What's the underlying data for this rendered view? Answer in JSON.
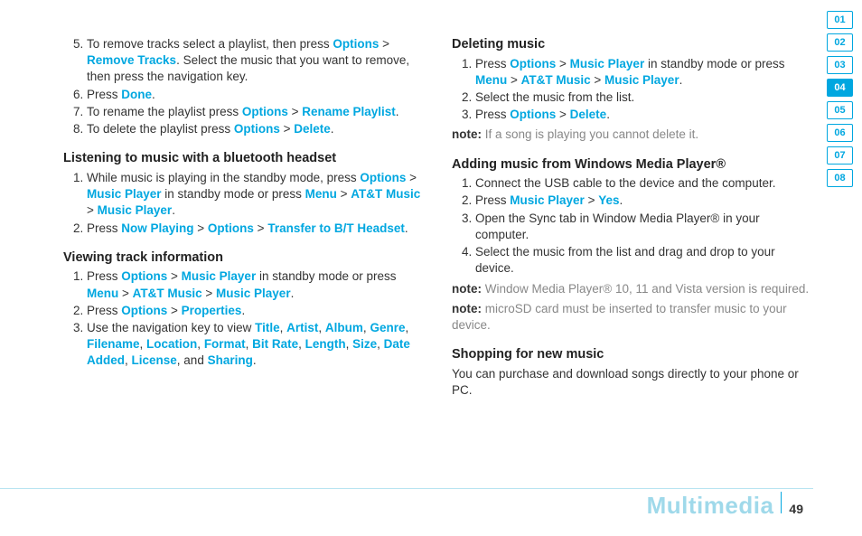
{
  "colors": {
    "accent": "#00a7e0",
    "muted": "#888",
    "footerTitle": "#9fd9ea"
  },
  "pageNumber": "49",
  "sectionTitle": "Multimedia",
  "sidebarTabs": [
    "01",
    "02",
    "03",
    "04",
    "05",
    "06",
    "07",
    "08"
  ],
  "sidebarActive": "04",
  "left": {
    "list1": {
      "start": 5,
      "items": [
        {
          "pre": "To remove tracks select a playlist, then press ",
          "k1": "Options",
          "sep1": " > ",
          "k2": "Remove Tracks",
          "post": ". Select the music that you want to remove, then press the navigation key."
        },
        {
          "pre": "Press ",
          "k1": "Done",
          "post": "."
        },
        {
          "pre": "To rename the playlist press ",
          "k1": "Options",
          "sep1": " > ",
          "k2": "Rename Playlist",
          "post": "."
        },
        {
          "pre": "To delete the playlist press ",
          "k1": "Options",
          "sep1": " > ",
          "k2": "Delete",
          "post": "."
        }
      ]
    },
    "h2": "Listening to music with a bluetooth headset",
    "list2": [
      {
        "pre": "While music is playing in the standby mode, press ",
        "k1": "Options",
        "s1": " > ",
        "k2": "Music Player",
        "mid": " in standby mode or press ",
        "k3": "Menu",
        "s2": " > ",
        "k4": "AT&T Music",
        "s3": " > ",
        "k5": "Music Player",
        "post": "."
      },
      {
        "pre": "Press ",
        "k1": "Now Playing",
        "s1": " > ",
        "k2": "Options",
        "s2": " > ",
        "k3": "Transfer to B/T Headset",
        "post": "."
      }
    ],
    "h3": "Viewing track information",
    "list3": [
      {
        "pre": "Press ",
        "k1": "Options",
        "s1": " > ",
        "k2": "Music Player",
        "mid": " in standby mode or press ",
        "k3": "Menu",
        "s2": " > ",
        "k4": "AT&T Music",
        "s3": " > ",
        "k5": "Music Player",
        "post": "."
      },
      {
        "pre": "Press ",
        "k1": "Options",
        "s1": " > ",
        "k2": "Properties",
        "post": "."
      },
      {
        "pre": "Use the navigation key to view ",
        "keys": [
          "Title",
          "Artist",
          "Album",
          "Genre",
          "Filename",
          "Location",
          "Format",
          "Bit Rate",
          "Length",
          "Size",
          "Date Added",
          "License",
          "Sharing"
        ]
      }
    ]
  },
  "right": {
    "h1": "Deleting music",
    "list1": [
      {
        "pre": "Press ",
        "k1": "Options",
        "s1": " > ",
        "k2": "Music Player",
        "mid": " in standby mode or press ",
        "k3": "Menu",
        "s2": " > ",
        "k4": "AT&T Music",
        "s3": " > ",
        "k5": "Music Player",
        "post": "."
      },
      {
        "text": "Select the music from the list."
      },
      {
        "pre": "Press ",
        "k1": "Options",
        "s1": " > ",
        "k2": "Delete",
        "post": "."
      }
    ],
    "note1": {
      "label": "note:",
      "text": " If a song is playing you cannot delete it."
    },
    "h2": "Adding music from Windows Media Player®",
    "list2": [
      {
        "text": "Connect the USB cable to the device and the computer."
      },
      {
        "pre": "Press ",
        "k1": "Music Player",
        "s1": " > ",
        "k2": "Yes",
        "post": "."
      },
      {
        "text": "Open the Sync tab in Window Media Player® in your computer."
      },
      {
        "text": "Select the music from the list and drag and drop to your device."
      }
    ],
    "note2": {
      "label": "note:",
      "text": " Window Media Player® 10, 11 and Vista version is required."
    },
    "note3": {
      "label": "note:",
      "text": " microSD card must be inserted to transfer music to your device."
    },
    "h3": "Shopping for new music",
    "p3": "You can purchase and download  songs directly to your phone or PC."
  }
}
